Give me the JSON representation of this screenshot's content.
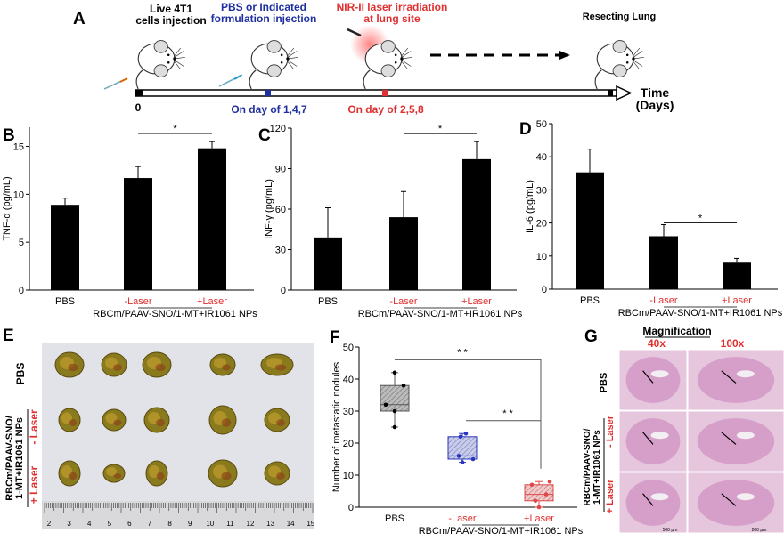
{
  "colors": {
    "red": "#e03030",
    "blue": "#1f2fa0",
    "bar": "#000000",
    "pbs_box": "#555555",
    "minus_box": "#2a35c0",
    "plus_box": "#e04848"
  },
  "panelA": {
    "label": "A",
    "step1": [
      "Live 4T1",
      "cells injection"
    ],
    "step2": [
      "PBS or Indicated",
      "formulation injection"
    ],
    "step3": [
      "NIR-II laser irradiation",
      "at lung site"
    ],
    "step4": "Resecting Lung",
    "day0": "0",
    "days_injection": "On day of 1,4,7",
    "days_laser": "On day of 2,5,8",
    "time_label": [
      "Time",
      "(Days)"
    ],
    "icons": [
      "mouse-icon",
      "syringe-icon",
      "laser-icon",
      "dashed-arrow-icon"
    ]
  },
  "chart_data": [
    {
      "panel": "B",
      "type": "bar",
      "categories": [
        "PBS",
        "-Laser",
        "+Laser"
      ],
      "values": [
        8.9,
        11.7,
        14.8
      ],
      "errors": [
        0.7,
        1.2,
        0.7
      ],
      "ylabel": "TNF-α (pg/mL)",
      "ylim": [
        0,
        17
      ],
      "yticks": [
        0,
        5,
        10,
        15
      ],
      "group_label": "RBCm/PAAV-SNO/1-MT+IR1061 NPs",
      "significance": [
        {
          "from": 1,
          "to": 2,
          "label": "*"
        }
      ]
    },
    {
      "panel": "C",
      "type": "bar",
      "categories": [
        "PBS",
        "-Laser",
        "+Laser"
      ],
      "values": [
        39,
        54,
        97
      ],
      "errors": [
        22,
        19,
        13
      ],
      "ylabel": "INF-γ (pg/mL)",
      "ylim": [
        0,
        120
      ],
      "yticks": [
        0,
        30,
        60,
        90,
        120
      ],
      "group_label": "RBCm/PAAV-SNO/1-MT+IR1061 NPs",
      "significance": [
        {
          "from": 1,
          "to": 2,
          "label": "*"
        }
      ]
    },
    {
      "panel": "D",
      "type": "bar",
      "categories": [
        "PBS",
        "-Laser",
        "+Laser"
      ],
      "values": [
        35.3,
        16,
        8
      ],
      "errors": [
        7,
        3.5,
        1.3
      ],
      "ylabel": "IL-6 (pg/mL)",
      "ylim": [
        0,
        50
      ],
      "yticks": [
        0,
        10,
        20,
        30,
        40,
        50
      ],
      "group_label": "RBCm/PAAV-SNO/1-MT+IR1061 NPs",
      "significance": [
        {
          "from": 1,
          "to": 2,
          "label": "*"
        }
      ]
    },
    {
      "panel": "F",
      "type": "box",
      "categories": [
        "PBS",
        "-Laser",
        "+Laser"
      ],
      "boxes": [
        {
          "min": 25,
          "q1": 30,
          "median": 32,
          "q3": 38,
          "max": 42,
          "points": [
            42,
            38,
            32,
            30,
            25
          ]
        },
        {
          "min": 14,
          "q1": 15,
          "median": 16,
          "q3": 22,
          "max": 23,
          "points": [
            22,
            23,
            16,
            14,
            15
          ]
        },
        {
          "min": 0,
          "q1": 2,
          "median": 4,
          "q3": 7,
          "max": 8,
          "points": [
            7,
            8,
            2,
            4,
            0
          ]
        }
      ],
      "ylabel": "Number of metastatic nodules",
      "ylim": [
        0,
        50
      ],
      "yticks": [
        0,
        10,
        20,
        30,
        40,
        50
      ],
      "group_label": "RBCm/PAAV-SNO/1-MT+IR1061 NPs",
      "significance": [
        {
          "from": 0,
          "to": 2,
          "label": "* *"
        },
        {
          "from": 1,
          "to": 2,
          "label": "* *"
        }
      ]
    }
  ],
  "panelE": {
    "label": "E",
    "row_pbs": "PBS",
    "group": [
      "RBCm/PAAV-SNO/",
      "1-MT+IR1061 NPs"
    ],
    "minus": "- Laser",
    "plus": "+ Laser",
    "ruler": [
      "2",
      "3",
      "4",
      "5",
      "6",
      "7",
      "8",
      "9",
      "10",
      "11",
      "12",
      "13",
      "14",
      "15"
    ]
  },
  "panelG": {
    "label": "G",
    "title": "Magnification",
    "col1": "40x",
    "col2": "100x",
    "row_pbs": "PBS",
    "group": [
      "RBCm/PAAV-SNO/",
      "1-MT+IR1061 NPs"
    ],
    "minus": "- Laser",
    "plus": "+ Laser",
    "scale1": "500 μm",
    "scale2": "200 μm"
  }
}
